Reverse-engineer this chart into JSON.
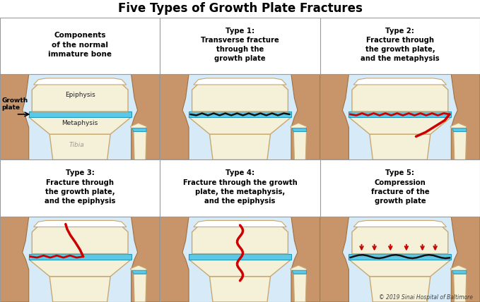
{
  "title": "Five Types of Growth Plate Fractures",
  "title_fontsize": 12,
  "bg_color": "#ffffff",
  "panel_bg_top": "#d6eaf8",
  "panel_bg_bot": "#b8d4e8",
  "header_bg": "#ffffff",
  "border_color": "#999999",
  "bone_fill": "#f5f0d8",
  "bone_edge": "#c8a870",
  "cartilage_fill": "#ffffff",
  "skin_fill": "#c8956a",
  "skin_edge": "#a07040",
  "skin_dark": "#b07848",
  "gp_color": "#5bc8e8",
  "gp_edge": "#2299bb",
  "fib_gp_color": "#5bc8e8",
  "fracture_color": "#cc0000",
  "text_color": "#000000",
  "gray_text": "#888888",
  "copyright": "© 2019 Sinai Hospital of Baltimore",
  "panel_labels": [
    "Components\nof the normal\nimmature bone",
    "Type 1:\nTransverse fracture\nthrough the\ngrowth plate",
    "Type 2:\nFracture through\nthe growth plate,\nand the metaphysis",
    "Type 3:\nFracture through\nthe growth plate,\nand the epiphysis",
    "Type 4:\nFracture through the growth\nplate, the metaphysis,\nand the epiphysis",
    "Type 5:\nCompression\nfracture of the\ngrowth plate"
  ],
  "figsize": [
    6.79,
    4.28
  ],
  "dpi": 100
}
